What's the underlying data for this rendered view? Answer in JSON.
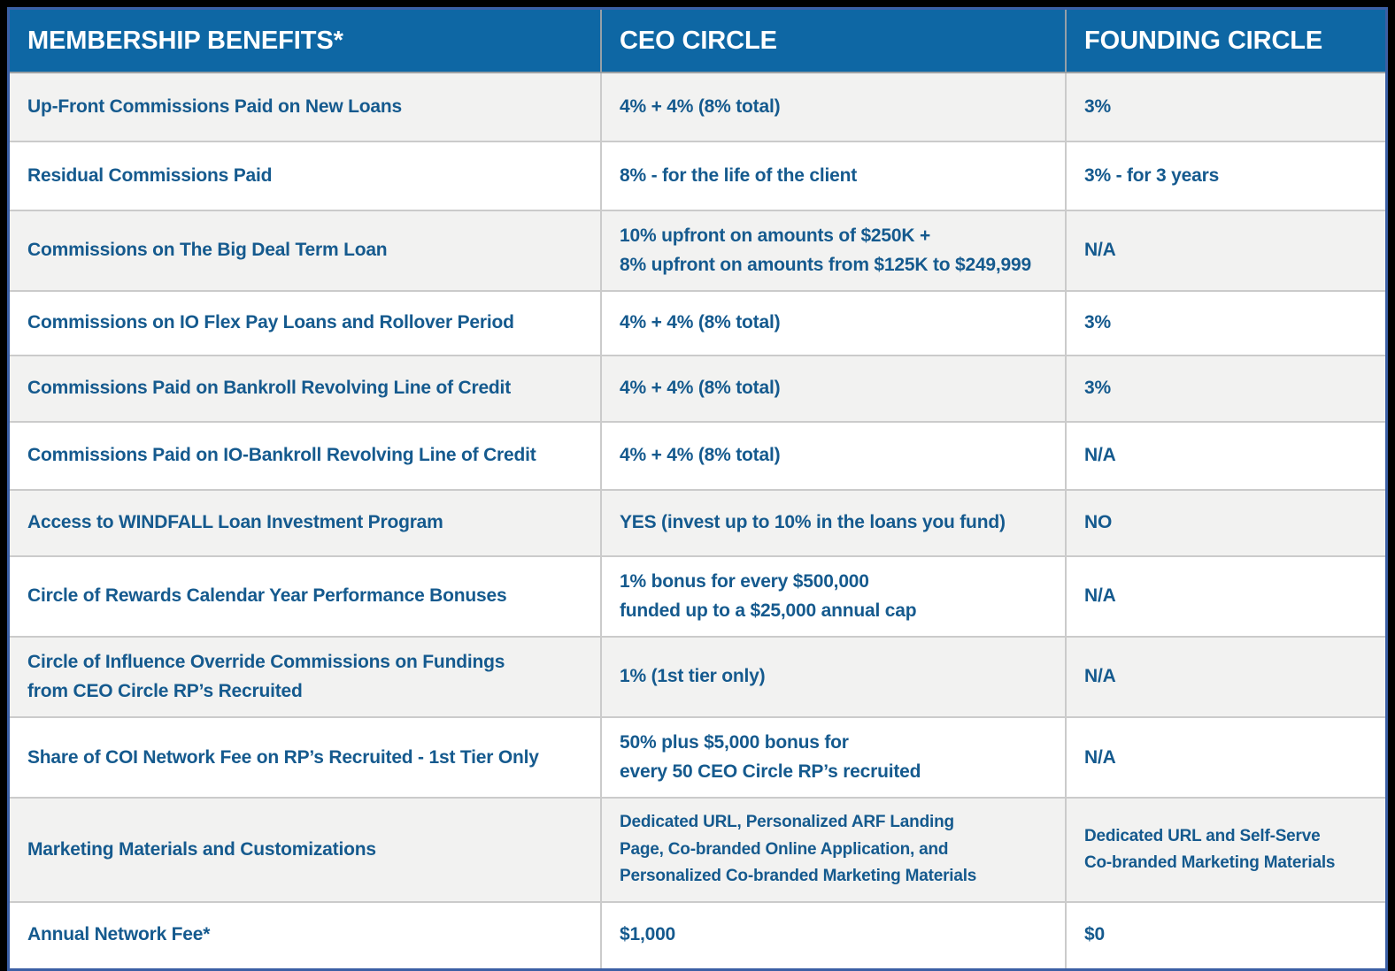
{
  "table": {
    "columns": [
      {
        "label": "MEMBERSHIP BENEFITS*"
      },
      {
        "label": "CEO CIRCLE"
      },
      {
        "label": "FOUNDING CIRCLE"
      }
    ],
    "rows": [
      {
        "benefit": "Up-Front Commissions Paid on New Loans",
        "ceo": "4% + 4% (8% total)",
        "founding": "3%"
      },
      {
        "benefit": "Residual Commissions Paid",
        "ceo": "8% - for the life of the client",
        "founding": "3% - for 3 years"
      },
      {
        "benefit": "Commissions on The Big Deal Term Loan",
        "ceo": [
          "10% upfront on amounts of $250K +",
          "8% upfront on amounts from $125K to $249,999"
        ],
        "founding": "N/A"
      },
      {
        "benefit": "Commissions on IO Flex Pay Loans and Rollover Period",
        "ceo": "4% + 4% (8% total)",
        "founding": "3%"
      },
      {
        "benefit": "Commissions Paid on Bankroll Revolving Line of Credit",
        "ceo": "4% + 4% (8% total)",
        "founding": "3%"
      },
      {
        "benefit": "Commissions Paid on IO-Bankroll Revolving Line of Credit",
        "ceo": "4% + 4% (8% total)",
        "founding": "N/A"
      },
      {
        "benefit": "Access to WINDFALL Loan Investment Program",
        "ceo": "YES (invest up to 10% in the loans you fund)",
        "founding": "NO"
      },
      {
        "benefit": "Circle of Rewards Calendar Year Performance Bonuses",
        "ceo": [
          "1% bonus for every $500,000",
          "funded up to a $25,000 annual cap"
        ],
        "founding": "N/A"
      },
      {
        "benefit": [
          "Circle of Influence Override Commissions on Fundings",
          "from CEO Circle RP’s Recruited"
        ],
        "ceo": "1% (1st tier only)",
        "founding": "N/A"
      },
      {
        "benefit": "Share of COI Network Fee on RP’s Recruited - 1st Tier Only",
        "ceo": [
          "50% plus $5,000 bonus for",
          "every 50 CEO Circle RP’s recruited"
        ],
        "founding": "N/A"
      },
      {
        "benefit": "Marketing Materials and Customizations",
        "ceo": [
          "Dedicated URL, Personalized ARF Landing",
          "Page, Co-branded Online Application, and",
          "Personalized Co-branded Marketing Materials"
        ],
        "founding": [
          "Dedicated URL and Self-Serve",
          "Co-branded Marketing Materials"
        ]
      },
      {
        "benefit": "Annual Network Fee*",
        "ceo": "$1,000",
        "founding": "$0"
      }
    ]
  },
  "colors": {
    "header_background": "#0e67a4",
    "header_text": "#ffffff",
    "body_text": "#155a8e",
    "alt_row_background": "#f2f2f1",
    "outer_frame": "#3b5fa5",
    "page_background": "#000000"
  }
}
